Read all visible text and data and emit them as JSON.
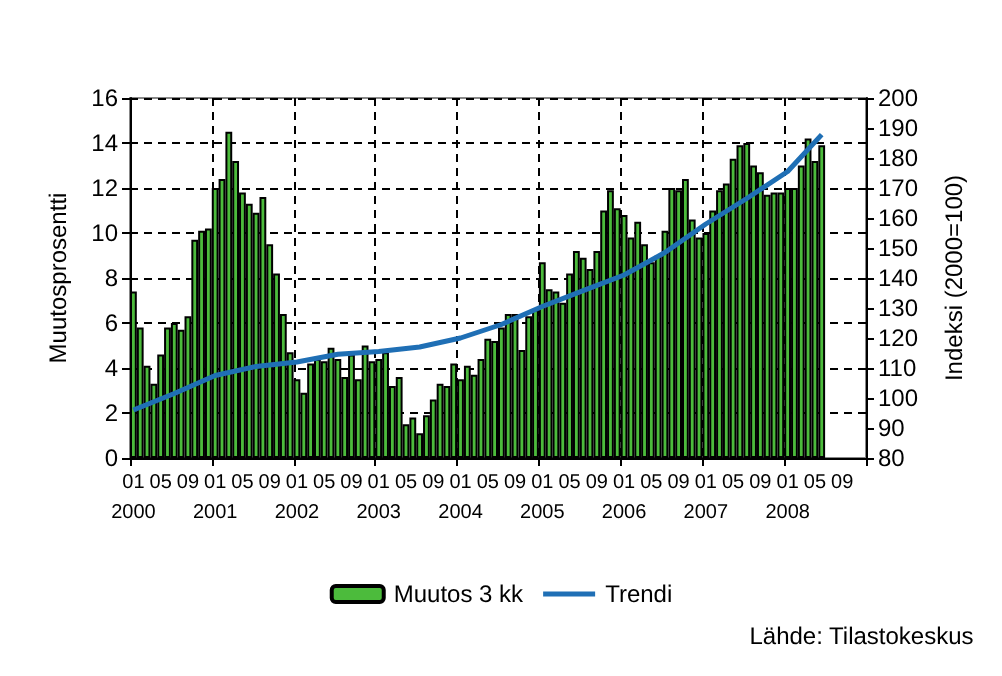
{
  "chart_data": {
    "type": "bar",
    "ylabel": "Muutosprosentti",
    "y2label": "Indeksi (2000=100)",
    "annotations": [
      "Lähde: Tilastokeskus"
    ],
    "categories": [
      "01\n2000",
      null,
      null,
      null,
      "05",
      null,
      null,
      null,
      "09",
      null,
      null,
      null,
      "01\n2001",
      null,
      null,
      null,
      "05",
      null,
      null,
      null,
      "09",
      null,
      null,
      null,
      "01\n2002",
      null,
      null,
      null,
      "05",
      null,
      null,
      null,
      "09",
      null,
      null,
      null,
      "01\n2003",
      null,
      null,
      null,
      "05",
      null,
      null,
      null,
      "09",
      null,
      null,
      null,
      "01\n2004",
      null,
      null,
      null,
      "05",
      null,
      null,
      null,
      "09",
      null,
      null,
      null,
      "01\n2005",
      null,
      null,
      null,
      "05",
      null,
      null,
      null,
      "09",
      null,
      null,
      null,
      "01\n2006",
      null,
      null,
      null,
      "05",
      null,
      null,
      null,
      "09",
      null,
      null,
      null,
      "01\n2007",
      null,
      null,
      null,
      "05",
      null,
      null,
      null,
      "09",
      null,
      null,
      null,
      "01\n2008",
      null,
      null,
      null,
      "05",
      null,
      null,
      null,
      "09",
      null,
      null,
      null
    ],
    "series": [
      {
        "name": "Muutos 3 kk",
        "color": "#4cbb3c",
        "values": [
          7.4,
          5.8,
          4.1,
          3.3,
          4.6,
          5.8,
          6.0,
          5.7,
          6.3,
          9.7,
          10.1,
          10.2,
          12.0,
          12.4,
          14.5,
          13.2,
          11.8,
          11.3,
          10.9,
          11.6,
          9.5,
          8.2,
          6.4,
          4.7,
          3.5,
          2.9,
          4.2,
          4.4,
          4.3,
          4.9,
          4.4,
          3.6,
          4.6,
          3.5,
          5.0,
          4.3,
          4.4,
          4.7,
          3.2,
          3.6,
          1.5,
          1.8,
          1.1,
          1.9,
          2.6,
          3.3,
          3.2,
          4.2,
          3.5,
          4.1,
          3.7,
          4.4,
          5.3,
          5.2,
          5.8,
          6.4,
          6.4,
          4.8,
          6.3,
          6.6,
          8.7,
          7.5,
          7.4,
          6.9,
          8.2,
          9.2,
          8.9,
          8.4,
          9.2,
          11.0,
          11.9,
          11.1,
          10.8,
          9.8,
          10.5,
          9.5,
          8.7,
          9.0,
          10.1,
          12.0,
          11.9,
          12.4,
          10.6,
          9.8,
          10.0,
          11.0,
          11.9,
          12.2,
          13.3,
          13.9,
          14.0,
          13.0,
          12.7,
          11.7,
          11.8,
          11.8,
          12.0,
          12.0,
          13.0,
          14.2,
          13.2,
          13.9,
          null,
          null,
          null,
          null,
          null,
          null
        ]
      },
      {
        "name": "Trendi",
        "type": "line",
        "axis": "y2",
        "color": "#1f6fb5",
        "values": [
          96,
          null,
          null,
          null,
          null,
          null,
          101.5,
          null,
          null,
          null,
          null,
          null,
          107.5,
          null,
          null,
          null,
          null,
          null,
          110.5,
          null,
          null,
          null,
          null,
          null,
          112,
          null,
          null,
          null,
          null,
          null,
          114.6,
          null,
          null,
          null,
          null,
          null,
          115.5,
          null,
          null,
          null,
          null,
          null,
          117,
          null,
          null,
          null,
          null,
          null,
          120,
          null,
          null,
          null,
          null,
          null,
          124.5,
          null,
          null,
          null,
          null,
          null,
          130.5,
          null,
          null,
          null,
          null,
          null,
          135.8,
          null,
          null,
          null,
          null,
          null,
          141,
          null,
          null,
          null,
          null,
          null,
          148.5,
          null,
          null,
          null,
          null,
          null,
          158,
          null,
          null,
          null,
          null,
          null,
          166.5,
          null,
          null,
          null,
          null,
          null,
          175.5,
          null,
          null,
          null,
          null,
          187.8,
          null,
          null,
          null,
          null,
          null,
          null
        ]
      }
    ],
    "ylim": [
      0,
      16
    ],
    "yticks": [
      0,
      2,
      4,
      6,
      8,
      10,
      12,
      14,
      16
    ],
    "y2lim": [
      80,
      200
    ],
    "y2ticks": [
      80,
      90,
      100,
      110,
      120,
      130,
      140,
      150,
      160,
      170,
      180,
      190,
      200
    ],
    "grid": true,
    "legend": "bottom",
    "marker": "none"
  }
}
